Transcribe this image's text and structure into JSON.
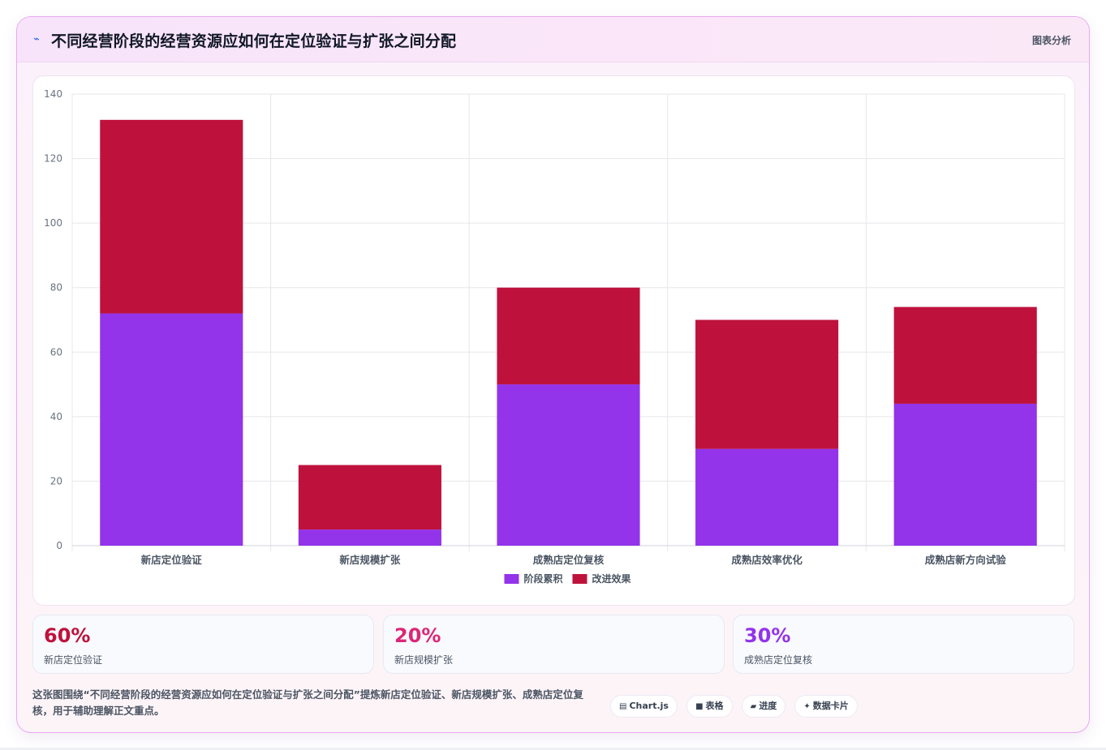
{
  "header": {
    "title": "不同经营阶段的经营资源应如何在定位验证与扩张之间分配",
    "tag": "图表分析",
    "icon": "sparkline-icon"
  },
  "chart_data": {
    "type": "bar",
    "stacked": true,
    "categories": [
      "新店定位验证",
      "新店规模扩张",
      "成熟店定位复核",
      "成熟店效率优化",
      "成熟店新方向试验"
    ],
    "series": [
      {
        "name": "阶段累积",
        "color": "#9333ea",
        "values": [
          72,
          5,
          50,
          30,
          44
        ]
      },
      {
        "name": "改进效果",
        "color": "#be123c",
        "values": [
          60,
          20,
          30,
          40,
          30
        ]
      }
    ],
    "ylim": [
      0,
      140
    ],
    "yticks": [
      "0",
      "20",
      "40",
      "60",
      "80",
      "100",
      "120",
      "140"
    ],
    "grid": true,
    "legend": "bottom"
  },
  "stats": [
    {
      "value": "60%",
      "label": "新店定位验证",
      "color": "#be123c"
    },
    {
      "value": "20%",
      "label": "新店规模扩张",
      "color": "#db2777"
    },
    {
      "value": "30%",
      "label": "成熟店定位复核",
      "color": "#9333ea"
    }
  ],
  "description": "这张图围绕“不同经营阶段的经营资源应如何在定位验证与扩张之间分配”提炼新店定位验证、新店规模扩张、成熟店定位复核，用于辅助理解正文重点。",
  "pills": [
    {
      "icon": "chart-icon",
      "label": "Chart.js"
    },
    {
      "icon": "table-icon",
      "label": "表格"
    },
    {
      "icon": "progress-icon",
      "label": "进度"
    },
    {
      "icon": "sparkle-icon",
      "label": "数据卡片"
    }
  ]
}
